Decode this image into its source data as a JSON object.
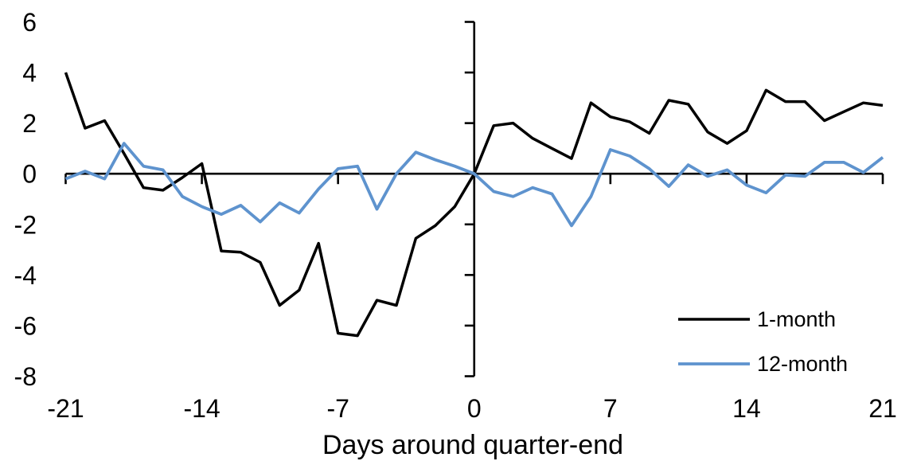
{
  "chart_data": {
    "type": "line",
    "title": "",
    "xlabel": "Days around quarter-end",
    "ylabel": "",
    "xlim": [
      -21,
      21
    ],
    "ylim": [
      -8,
      6
    ],
    "x_ticks": [
      -21,
      -14,
      -7,
      0,
      7,
      14,
      21
    ],
    "y_ticks": [
      6,
      4,
      2,
      0,
      -2,
      -4,
      -6,
      -8
    ],
    "grid": false,
    "legend_position": "lower-right",
    "axis_color": "#000000",
    "x": [
      -21,
      -20,
      -19,
      -18,
      -17,
      -16,
      -15,
      -14,
      -13,
      -12,
      -11,
      -10,
      -9,
      -8,
      -7,
      -6,
      -5,
      -4,
      -3,
      -2,
      -1,
      0,
      1,
      2,
      3,
      4,
      5,
      6,
      7,
      8,
      9,
      10,
      11,
      12,
      13,
      14,
      15,
      16,
      17,
      18,
      19,
      20,
      21
    ],
    "series": [
      {
        "name": "1-month",
        "color": "#000000",
        "values": [
          4.0,
          1.8,
          2.1,
          0.8,
          -0.55,
          -0.65,
          -0.15,
          0.4,
          -3.05,
          -3.1,
          -3.5,
          -5.2,
          -4.6,
          -2.75,
          -6.3,
          -6.4,
          -5.0,
          -5.2,
          -2.55,
          -2.05,
          -1.3,
          0,
          1.9,
          2.0,
          1.4,
          1.0,
          0.6,
          2.8,
          2.25,
          2.05,
          1.6,
          2.9,
          2.75,
          1.65,
          1.2,
          1.7,
          3.3,
          2.85,
          2.85,
          2.1,
          2.45,
          2.8,
          2.7
        ]
      },
      {
        "name": "12-month",
        "color": "#5E93CE",
        "values": [
          -0.2,
          0.1,
          -0.2,
          1.2,
          0.3,
          0.15,
          -0.9,
          -1.3,
          -1.6,
          -1.25,
          -1.9,
          -1.15,
          -1.55,
          -0.6,
          0.2,
          0.3,
          -1.4,
          0.0,
          0.85,
          0.55,
          0.3,
          0,
          -0.7,
          -0.9,
          -0.55,
          -0.8,
          -2.05,
          -0.9,
          0.95,
          0.7,
          0.2,
          -0.5,
          0.35,
          -0.1,
          0.15,
          -0.45,
          -0.75,
          -0.05,
          -0.1,
          0.45,
          0.45,
          0.05,
          0.65
        ]
      }
    ]
  }
}
